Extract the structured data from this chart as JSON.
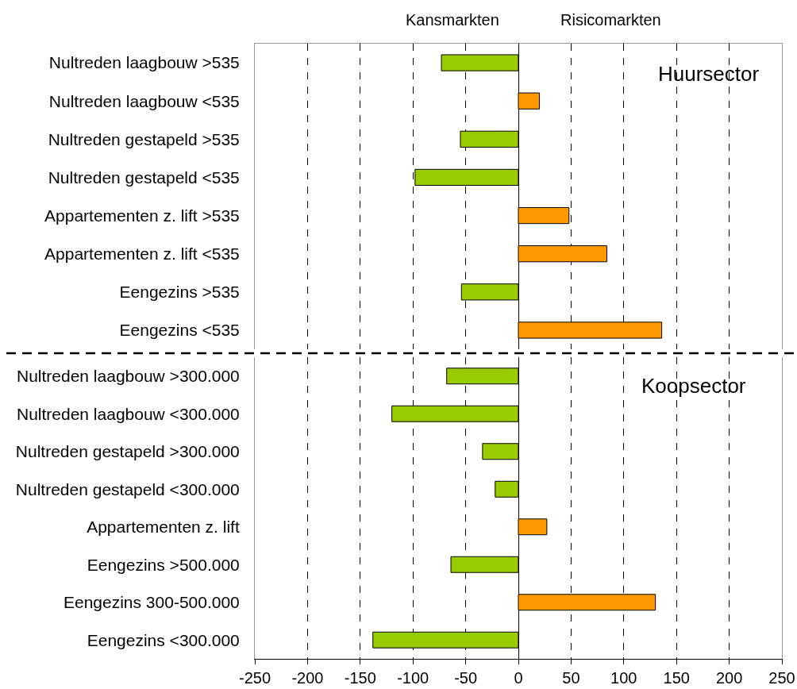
{
  "chart_data": [
    {
      "type": "bar",
      "orientation": "horizontal",
      "categories": [
        "Nultreden laagbouw >535",
        "Nultreden laagbouw <535",
        "Nultreden gestapeld >535",
        "Nultreden gestapeld <535",
        "Appartementen z. lift >535",
        "Appartementen z. lift <535",
        "Eengezins >535",
        "Eengezins <535"
      ],
      "values": [
        -73,
        20,
        -55,
        -98,
        48,
        84,
        -54,
        136
      ],
      "colors": [
        "#99cc00",
        "#ff9900",
        "#99cc00",
        "#99cc00",
        "#ff9900",
        "#ff9900",
        "#99cc00",
        "#ff9900"
      ],
      "xlim": [
        -250,
        250
      ],
      "xticks": [
        -250,
        -200,
        -150,
        -100,
        -50,
        0,
        50,
        100,
        150,
        200,
        250
      ],
      "grid": "x",
      "tick_labels": "y",
      "annotations": [
        "Kansmarkten",
        "Risicomarkten",
        "Huursector"
      ]
    },
    {
      "type": "bar",
      "orientation": "horizontal",
      "categories": [
        "Nultreden laagbouw >300.000",
        "Nultreden laagbouw <300.000",
        "Nultreden gestapeld >300.000",
        "Nultreden gestapeld <300.000",
        "Appartementen z. lift",
        "Eengezins >500.000",
        "Eengezins 300-500.000",
        "Eengezins <300.000"
      ],
      "values": [
        -68,
        -120,
        -34,
        -22,
        27,
        -64,
        130,
        -138
      ],
      "colors": [
        "#99cc00",
        "#99cc00",
        "#99cc00",
        "#99cc00",
        "#ff9900",
        "#99cc00",
        "#ff9900",
        "#99cc00"
      ],
      "xlim": [
        -250,
        250
      ],
      "xticks": [
        -250,
        -200,
        -150,
        -100,
        -50,
        0,
        50,
        100,
        150,
        200,
        250
      ],
      "grid": "x",
      "annotations": [
        "Koopsector"
      ]
    }
  ]
}
